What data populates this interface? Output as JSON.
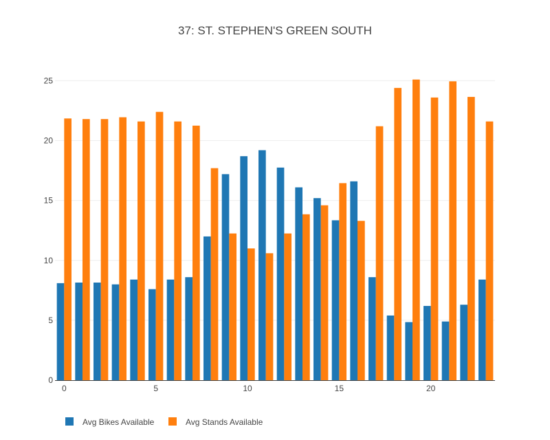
{
  "chart_data": {
    "type": "bar",
    "title": "37: ST. STEPHEN'S GREEN SOUTH",
    "xlabel": "",
    "ylabel": "",
    "x": [
      0,
      1,
      2,
      3,
      4,
      5,
      6,
      7,
      8,
      9,
      10,
      11,
      12,
      13,
      14,
      15,
      16,
      17,
      18,
      19,
      20,
      21,
      22,
      23
    ],
    "xticks": [
      0,
      5,
      10,
      15,
      20
    ],
    "yticks": [
      0,
      5,
      10,
      15,
      20,
      25
    ],
    "ylim": [
      0,
      26
    ],
    "xlim": [
      -0.5,
      23.5
    ],
    "grid": "horizontal",
    "legend_position": "bottom-left",
    "series": [
      {
        "name": "Avg Bikes Available",
        "color": "#1f77b4",
        "values": [
          8.1,
          8.15,
          8.15,
          8.0,
          8.4,
          7.6,
          8.4,
          8.6,
          12.0,
          17.2,
          18.7,
          19.2,
          17.75,
          16.1,
          15.2,
          13.35,
          16.6,
          8.6,
          5.4,
          4.85,
          6.2,
          4.9,
          6.3,
          8.4
        ]
      },
      {
        "name": "Avg Stands Available",
        "color": "#ff7f0e",
        "values": [
          21.85,
          21.8,
          21.8,
          21.95,
          21.6,
          22.4,
          21.6,
          21.25,
          17.7,
          12.25,
          11.0,
          10.6,
          12.25,
          13.85,
          14.6,
          16.45,
          13.3,
          21.2,
          24.4,
          25.1,
          23.6,
          24.95,
          23.65,
          21.6
        ]
      }
    ]
  }
}
